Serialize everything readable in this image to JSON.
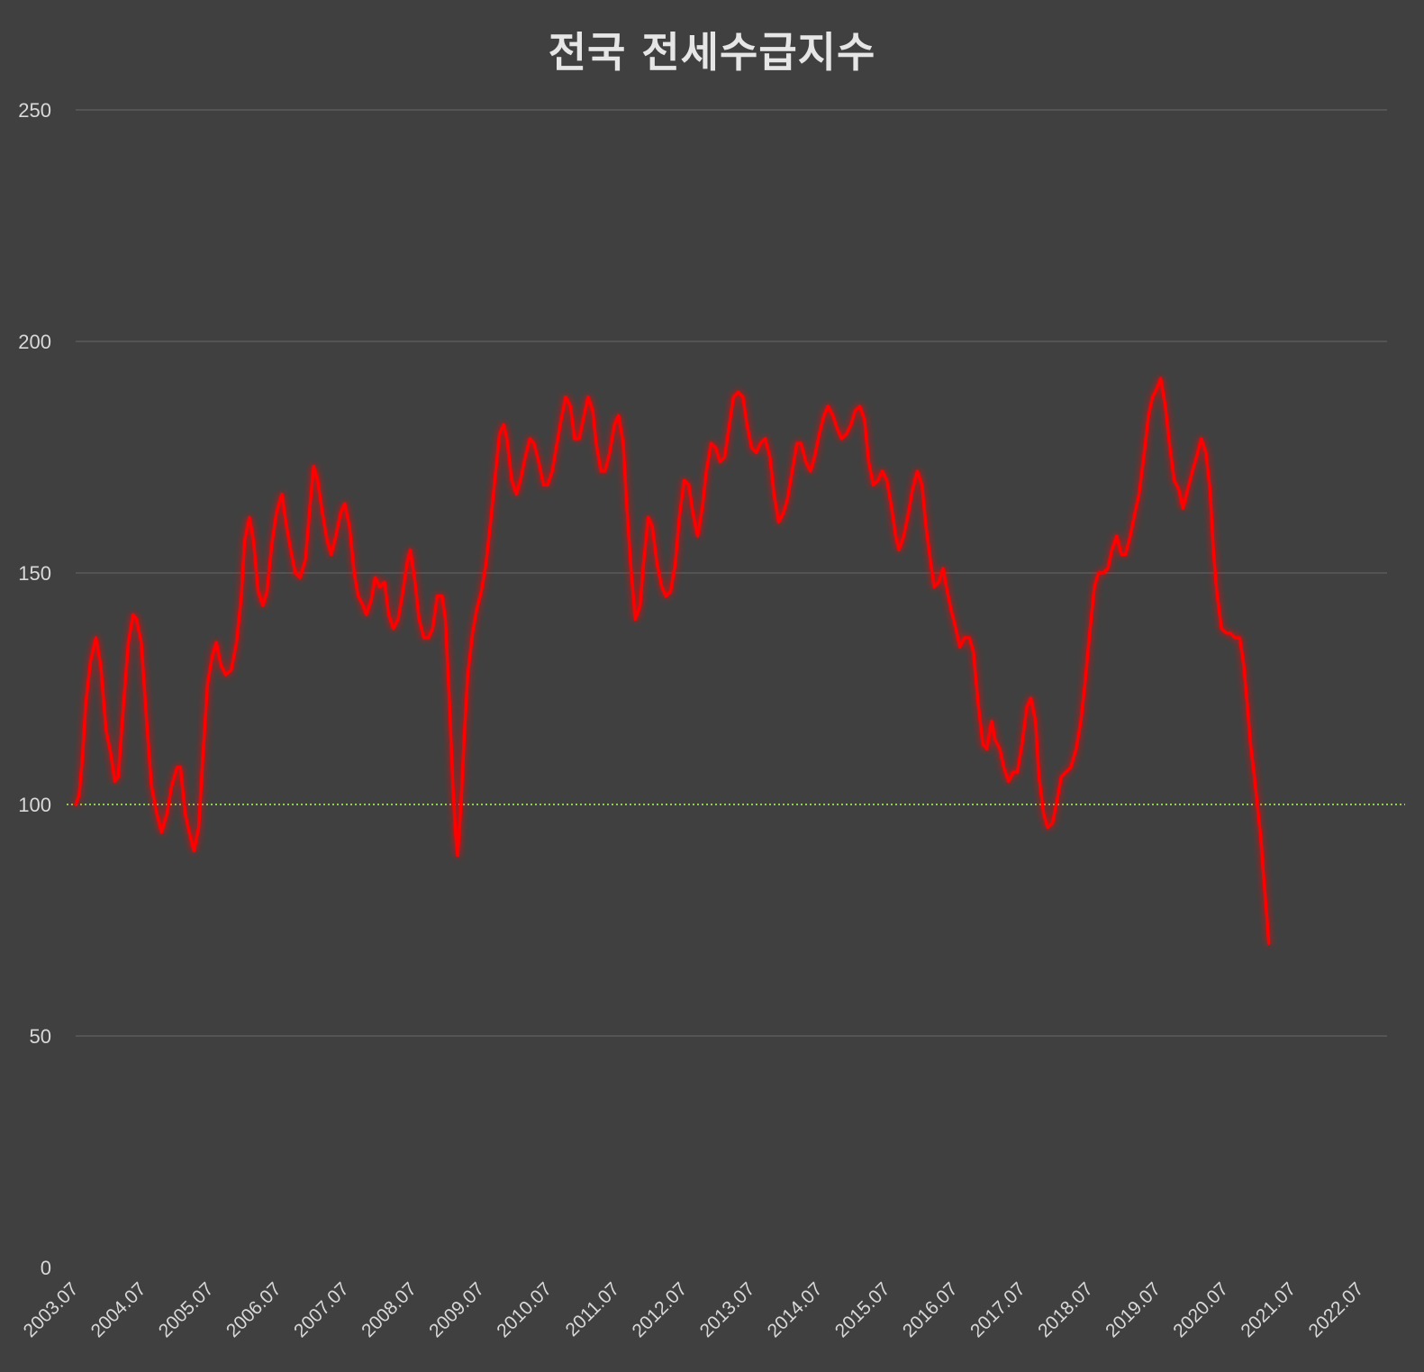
{
  "chart_data": {
    "type": "line",
    "title": "전국 전세수급지수",
    "xlabel": "",
    "ylabel": "",
    "ylim": [
      0,
      250
    ],
    "yticks": [
      0,
      50,
      100,
      150,
      200,
      250
    ],
    "xtick_labels": [
      "2003.07",
      "2004.07",
      "2005.07",
      "2006.07",
      "2007.07",
      "2008.07",
      "2009.07",
      "2010.07",
      "2011.07",
      "2012.07",
      "2013.07",
      "2014.07",
      "2015.07",
      "2016.07",
      "2017.07",
      "2018.07",
      "2019.07",
      "2020.07",
      "2021.07",
      "2022.07"
    ],
    "x_start": 2003.5,
    "x_end": 2022.9,
    "grid": true,
    "reference_line": {
      "y": 100,
      "color": "#92d050",
      "style": "dotted"
    },
    "series": [
      {
        "color": "#ff0000",
        "points": [
          [
            2003.5,
            100
          ],
          [
            2003.55,
            102
          ],
          [
            2003.6,
            110
          ],
          [
            2003.65,
            122
          ],
          [
            2003.72,
            131
          ],
          [
            2003.8,
            136
          ],
          [
            2003.87,
            130
          ],
          [
            2003.95,
            116
          ],
          [
            2004.02,
            111
          ],
          [
            2004.08,
            105
          ],
          [
            2004.13,
            106
          ],
          [
            2004.2,
            120
          ],
          [
            2004.28,
            135
          ],
          [
            2004.35,
            141
          ],
          [
            2004.4,
            140
          ],
          [
            2004.47,
            135
          ],
          [
            2004.55,
            118
          ],
          [
            2004.62,
            104
          ],
          [
            2004.7,
            98
          ],
          [
            2004.77,
            94
          ],
          [
            2004.85,
            98
          ],
          [
            2004.92,
            104
          ],
          [
            2005.0,
            108
          ],
          [
            2005.05,
            108
          ],
          [
            2005.12,
            98
          ],
          [
            2005.18,
            94
          ],
          [
            2005.25,
            90
          ],
          [
            2005.32,
            95
          ],
          [
            2005.38,
            110
          ],
          [
            2005.45,
            126
          ],
          [
            2005.52,
            132
          ],
          [
            2005.58,
            135
          ],
          [
            2005.65,
            130
          ],
          [
            2005.72,
            128
          ],
          [
            2005.8,
            129
          ],
          [
            2005.88,
            135
          ],
          [
            2005.95,
            145
          ],
          [
            2006.0,
            157
          ],
          [
            2006.07,
            162
          ],
          [
            2006.13,
            157
          ],
          [
            2006.2,
            146
          ],
          [
            2006.27,
            143
          ],
          [
            2006.33,
            146
          ],
          [
            2006.4,
            156
          ],
          [
            2006.47,
            163
          ],
          [
            2006.55,
            167
          ],
          [
            2006.62,
            160
          ],
          [
            2006.68,
            155
          ],
          [
            2006.75,
            150
          ],
          [
            2006.82,
            149
          ],
          [
            2006.9,
            153
          ],
          [
            2006.97,
            165
          ],
          [
            2007.02,
            173
          ],
          [
            2007.08,
            170
          ],
          [
            2007.15,
            163
          ],
          [
            2007.22,
            157
          ],
          [
            2007.28,
            154
          ],
          [
            2007.35,
            158
          ],
          [
            2007.42,
            163
          ],
          [
            2007.48,
            165
          ],
          [
            2007.55,
            160
          ],
          [
            2007.62,
            150
          ],
          [
            2007.68,
            145
          ],
          [
            2007.75,
            143
          ],
          [
            2007.8,
            141
          ],
          [
            2007.87,
            144
          ],
          [
            2007.93,
            149
          ],
          [
            2008.0,
            147
          ],
          [
            2008.07,
            148
          ],
          [
            2008.13,
            141
          ],
          [
            2008.2,
            138
          ],
          [
            2008.27,
            140
          ],
          [
            2008.33,
            145
          ],
          [
            2008.4,
            152
          ],
          [
            2008.45,
            155
          ],
          [
            2008.52,
            148
          ],
          [
            2008.58,
            140
          ],
          [
            2008.65,
            136
          ],
          [
            2008.72,
            136
          ],
          [
            2008.78,
            138
          ],
          [
            2008.85,
            145
          ],
          [
            2008.92,
            145
          ],
          [
            2008.97,
            140
          ],
          [
            2009.03,
            122
          ],
          [
            2009.08,
            104
          ],
          [
            2009.12,
            94
          ],
          [
            2009.15,
            89
          ],
          [
            2009.2,
            100
          ],
          [
            2009.25,
            115
          ],
          [
            2009.3,
            128
          ],
          [
            2009.37,
            137
          ],
          [
            2009.43,
            142
          ],
          [
            2009.5,
            146
          ],
          [
            2009.57,
            152
          ],
          [
            2009.63,
            160
          ],
          [
            2009.7,
            170
          ],
          [
            2009.77,
            180
          ],
          [
            2009.83,
            182
          ],
          [
            2009.88,
            179
          ],
          [
            2009.95,
            170
          ],
          [
            2010.02,
            167
          ],
          [
            2010.08,
            170
          ],
          [
            2010.15,
            175
          ],
          [
            2010.22,
            179
          ],
          [
            2010.28,
            178
          ],
          [
            2010.35,
            174
          ],
          [
            2010.42,
            169
          ],
          [
            2010.48,
            169
          ],
          [
            2010.55,
            172
          ],
          [
            2010.62,
            178
          ],
          [
            2010.68,
            183
          ],
          [
            2010.75,
            188
          ],
          [
            2010.82,
            186
          ],
          [
            2010.88,
            179
          ],
          [
            2010.95,
            179
          ],
          [
            2011.02,
            184
          ],
          [
            2011.08,
            188
          ],
          [
            2011.15,
            185
          ],
          [
            2011.2,
            178
          ],
          [
            2011.27,
            172
          ],
          [
            2011.33,
            172
          ],
          [
            2011.4,
            176
          ],
          [
            2011.47,
            182
          ],
          [
            2011.53,
            184
          ],
          [
            2011.6,
            178
          ],
          [
            2011.65,
            165
          ],
          [
            2011.72,
            150
          ],
          [
            2011.78,
            140
          ],
          [
            2011.85,
            143
          ],
          [
            2011.9,
            152
          ],
          [
            2011.97,
            162
          ],
          [
            2012.03,
            160
          ],
          [
            2012.1,
            152
          ],
          [
            2012.17,
            147
          ],
          [
            2012.23,
            145
          ],
          [
            2012.3,
            146
          ],
          [
            2012.37,
            152
          ],
          [
            2012.43,
            162
          ],
          [
            2012.5,
            170
          ],
          [
            2012.57,
            169
          ],
          [
            2012.63,
            163
          ],
          [
            2012.7,
            158
          ],
          [
            2012.77,
            164
          ],
          [
            2012.83,
            172
          ],
          [
            2012.9,
            178
          ],
          [
            2012.97,
            177
          ],
          [
            2013.03,
            174
          ],
          [
            2013.1,
            175
          ],
          [
            2013.17,
            182
          ],
          [
            2013.23,
            188
          ],
          [
            2013.3,
            189
          ],
          [
            2013.37,
            188
          ],
          [
            2013.43,
            182
          ],
          [
            2013.5,
            177
          ],
          [
            2013.57,
            176
          ],
          [
            2013.63,
            178
          ],
          [
            2013.7,
            179
          ],
          [
            2013.77,
            175
          ],
          [
            2013.83,
            167
          ],
          [
            2013.9,
            161
          ],
          [
            2013.97,
            163
          ],
          [
            2014.03,
            166
          ],
          [
            2014.1,
            172
          ],
          [
            2014.17,
            178
          ],
          [
            2014.23,
            178
          ],
          [
            2014.3,
            174
          ],
          [
            2014.37,
            172
          ],
          [
            2014.43,
            175
          ],
          [
            2014.5,
            180
          ],
          [
            2014.57,
            184
          ],
          [
            2014.63,
            186
          ],
          [
            2014.7,
            184
          ],
          [
            2014.77,
            181
          ],
          [
            2014.83,
            179
          ],
          [
            2014.9,
            180
          ],
          [
            2014.97,
            182
          ],
          [
            2015.03,
            185
          ],
          [
            2015.1,
            186
          ],
          [
            2015.17,
            183
          ],
          [
            2015.23,
            174
          ],
          [
            2015.3,
            169
          ],
          [
            2015.37,
            170
          ],
          [
            2015.43,
            172
          ],
          [
            2015.5,
            170
          ],
          [
            2015.57,
            164
          ],
          [
            2015.63,
            158
          ],
          [
            2015.68,
            155
          ],
          [
            2015.75,
            158
          ],
          [
            2015.82,
            163
          ],
          [
            2015.88,
            168
          ],
          [
            2015.95,
            172
          ],
          [
            2016.02,
            169
          ],
          [
            2016.08,
            160
          ],
          [
            2016.15,
            152
          ],
          [
            2016.2,
            147
          ],
          [
            2016.27,
            148
          ],
          [
            2016.33,
            151
          ],
          [
            2016.38,
            147
          ],
          [
            2016.45,
            142
          ],
          [
            2016.52,
            138
          ],
          [
            2016.58,
            134
          ],
          [
            2016.65,
            136
          ],
          [
            2016.72,
            136
          ],
          [
            2016.78,
            133
          ],
          [
            2016.85,
            122
          ],
          [
            2016.92,
            113
          ],
          [
            2016.98,
            112
          ],
          [
            2017.05,
            118
          ],
          [
            2017.1,
            114
          ],
          [
            2017.17,
            112
          ],
          [
            2017.23,
            108
          ],
          [
            2017.3,
            105
          ],
          [
            2017.37,
            107
          ],
          [
            2017.43,
            107
          ],
          [
            2017.5,
            113
          ],
          [
            2017.57,
            121
          ],
          [
            2017.63,
            123
          ],
          [
            2017.7,
            118
          ],
          [
            2017.75,
            106
          ],
          [
            2017.82,
            98
          ],
          [
            2017.88,
            95
          ],
          [
            2017.95,
            96
          ],
          [
            2018.02,
            101
          ],
          [
            2018.08,
            106
          ],
          [
            2018.15,
            107
          ],
          [
            2018.22,
            108
          ],
          [
            2018.3,
            112
          ],
          [
            2018.37,
            118
          ],
          [
            2018.43,
            126
          ],
          [
            2018.5,
            137
          ],
          [
            2018.57,
            147
          ],
          [
            2018.63,
            150
          ],
          [
            2018.7,
            150
          ],
          [
            2018.77,
            151
          ],
          [
            2018.83,
            155
          ],
          [
            2018.9,
            158
          ],
          [
            2018.97,
            154
          ],
          [
            2019.03,
            154
          ],
          [
            2019.1,
            158
          ],
          [
            2019.17,
            163
          ],
          [
            2019.23,
            167
          ],
          [
            2019.3,
            175
          ],
          [
            2019.37,
            184
          ],
          [
            2019.43,
            188
          ],
          [
            2019.5,
            190
          ],
          [
            2019.55,
            192
          ],
          [
            2019.62,
            186
          ],
          [
            2019.68,
            178
          ],
          [
            2019.75,
            170
          ],
          [
            2019.82,
            168
          ],
          [
            2019.88,
            164
          ],
          [
            2019.95,
            168
          ],
          [
            2020.02,
            172
          ],
          [
            2020.08,
            175
          ],
          [
            2020.15,
            179
          ],
          [
            2020.22,
            176
          ],
          [
            2020.28,
            168
          ],
          [
            2020.33,
            155
          ],
          [
            2020.38,
            146
          ],
          [
            2020.45,
            138
          ],
          [
            2020.52,
            137
          ],
          [
            2020.58,
            137
          ],
          [
            2020.65,
            136
          ],
          [
            2020.72,
            136
          ],
          [
            2020.78,
            130
          ],
          [
            2020.83,
            122
          ],
          [
            2020.88,
            113
          ],
          [
            2020.93,
            107
          ],
          [
            2020.98,
            100
          ],
          [
            2021.03,
            93
          ],
          [
            2021.07,
            85
          ],
          [
            2021.12,
            76
          ],
          [
            2021.15,
            70
          ]
        ]
      }
    ]
  }
}
